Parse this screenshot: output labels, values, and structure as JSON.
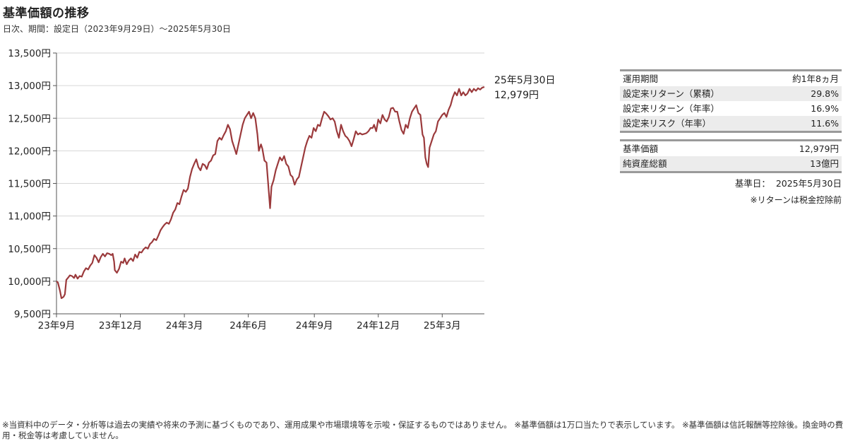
{
  "title": "基準価額の推移",
  "subtitle": "日次、期間：設定日（2023年9月29日）～2025年5月30日",
  "chart_data": {
    "type": "line",
    "title": "基準価額の推移",
    "ylim": [
      9500,
      13500
    ],
    "yticks": [
      "9,500円",
      "10,000円",
      "10,500円",
      "11,000円",
      "11,500円",
      "12,000円",
      "12,500円",
      "13,000円",
      "13,500円"
    ],
    "xticks": [
      {
        "label": "23年9月",
        "x": "2023-09-29"
      },
      {
        "label": "23年12月",
        "x": "2023-12-29"
      },
      {
        "label": "24年3月",
        "x": "2024-03-29"
      },
      {
        "label": "24年6月",
        "x": "2024-06-28"
      },
      {
        "label": "24年9月",
        "x": "2024-09-30"
      },
      {
        "label": "24年12月",
        "x": "2024-12-30"
      },
      {
        "label": "25年3月",
        "x": "2025-03-31"
      }
    ],
    "xrange": [
      "2023-09-29",
      "2025-05-30"
    ],
    "grid": true,
    "series": [
      {
        "color": "#9b3a3c",
        "points": [
          [
            "2023-09-29",
            10000
          ],
          [
            "2023-10-01",
            9980
          ],
          [
            "2023-10-04",
            9850
          ],
          [
            "2023-10-06",
            9740
          ],
          [
            "2023-10-09",
            9760
          ],
          [
            "2023-10-11",
            9800
          ],
          [
            "2023-10-13",
            10020
          ],
          [
            "2023-10-16",
            10060
          ],
          [
            "2023-10-18",
            10090
          ],
          [
            "2023-10-21",
            10080
          ],
          [
            "2023-10-24",
            10050
          ],
          [
            "2023-10-26",
            10100
          ],
          [
            "2023-10-29",
            10040
          ],
          [
            "2023-11-01",
            10080
          ],
          [
            "2023-11-04",
            10070
          ],
          [
            "2023-11-07",
            10150
          ],
          [
            "2023-11-10",
            10200
          ],
          [
            "2023-11-13",
            10180
          ],
          [
            "2023-11-16",
            10240
          ],
          [
            "2023-11-19",
            10280
          ],
          [
            "2023-11-22",
            10400
          ],
          [
            "2023-11-25",
            10360
          ],
          [
            "2023-11-28",
            10290
          ],
          [
            "2023-12-01",
            10370
          ],
          [
            "2023-12-04",
            10420
          ],
          [
            "2023-12-07",
            10380
          ],
          [
            "2023-12-10",
            10430
          ],
          [
            "2023-12-13",
            10420
          ],
          [
            "2023-12-16",
            10400
          ],
          [
            "2023-12-18",
            10420
          ],
          [
            "2023-12-20",
            10300
          ],
          [
            "2023-12-21",
            10170
          ],
          [
            "2023-12-24",
            10130
          ],
          [
            "2023-12-27",
            10190
          ],
          [
            "2023-12-30",
            10300
          ],
          [
            "2024-01-02",
            10280
          ],
          [
            "2024-01-04",
            10350
          ],
          [
            "2024-01-07",
            10260
          ],
          [
            "2024-01-10",
            10320
          ],
          [
            "2024-01-13",
            10350
          ],
          [
            "2024-01-16",
            10310
          ],
          [
            "2024-01-19",
            10410
          ],
          [
            "2024-01-22",
            10360
          ],
          [
            "2024-01-25",
            10450
          ],
          [
            "2024-01-28",
            10440
          ],
          [
            "2024-01-31",
            10490
          ],
          [
            "2024-02-03",
            10520
          ],
          [
            "2024-02-06",
            10500
          ],
          [
            "2024-02-09",
            10570
          ],
          [
            "2024-02-12",
            10600
          ],
          [
            "2024-02-15",
            10650
          ],
          [
            "2024-02-18",
            10630
          ],
          [
            "2024-02-21",
            10700
          ],
          [
            "2024-02-24",
            10780
          ],
          [
            "2024-02-27",
            10830
          ],
          [
            "2024-03-01",
            10870
          ],
          [
            "2024-03-04",
            10900
          ],
          [
            "2024-03-07",
            10880
          ],
          [
            "2024-03-10",
            10950
          ],
          [
            "2024-03-13",
            11050
          ],
          [
            "2024-03-16",
            11100
          ],
          [
            "2024-03-19",
            11200
          ],
          [
            "2024-03-22",
            11180
          ],
          [
            "2024-03-25",
            11300
          ],
          [
            "2024-03-28",
            11400
          ],
          [
            "2024-03-31",
            11370
          ],
          [
            "2024-04-03",
            11420
          ],
          [
            "2024-04-06",
            11600
          ],
          [
            "2024-04-09",
            11720
          ],
          [
            "2024-04-12",
            11800
          ],
          [
            "2024-04-15",
            11870
          ],
          [
            "2024-04-18",
            11750
          ],
          [
            "2024-04-21",
            11700
          ],
          [
            "2024-04-24",
            11800
          ],
          [
            "2024-04-27",
            11780
          ],
          [
            "2024-04-30",
            11720
          ],
          [
            "2024-05-03",
            11820
          ],
          [
            "2024-05-06",
            11850
          ],
          [
            "2024-05-09",
            11930
          ],
          [
            "2024-05-12",
            11950
          ],
          [
            "2024-05-15",
            12150
          ],
          [
            "2024-05-18",
            12200
          ],
          [
            "2024-05-21",
            12170
          ],
          [
            "2024-05-24",
            12240
          ],
          [
            "2024-05-27",
            12300
          ],
          [
            "2024-05-30",
            12400
          ],
          [
            "2024-06-02",
            12330
          ],
          [
            "2024-06-05",
            12150
          ],
          [
            "2024-06-08",
            12050
          ],
          [
            "2024-06-11",
            11950
          ],
          [
            "2024-06-14",
            12100
          ],
          [
            "2024-06-17",
            12250
          ],
          [
            "2024-06-20",
            12400
          ],
          [
            "2024-06-23",
            12500
          ],
          [
            "2024-06-26",
            12550
          ],
          [
            "2024-06-29",
            12600
          ],
          [
            "2024-07-02",
            12500
          ],
          [
            "2024-07-05",
            12580
          ],
          [
            "2024-07-08",
            12500
          ],
          [
            "2024-07-11",
            12250
          ],
          [
            "2024-07-13",
            12000
          ],
          [
            "2024-07-16",
            12100
          ],
          [
            "2024-07-18",
            12030
          ],
          [
            "2024-07-21",
            11850
          ],
          [
            "2024-07-24",
            11820
          ],
          [
            "2024-07-27",
            11400
          ],
          [
            "2024-07-29",
            11120
          ],
          [
            "2024-07-31",
            11450
          ],
          [
            "2024-08-03",
            11550
          ],
          [
            "2024-08-06",
            11700
          ],
          [
            "2024-08-09",
            11800
          ],
          [
            "2024-08-12",
            11900
          ],
          [
            "2024-08-15",
            11850
          ],
          [
            "2024-08-18",
            11920
          ],
          [
            "2024-08-21",
            11800
          ],
          [
            "2024-08-24",
            11760
          ],
          [
            "2024-08-27",
            11630
          ],
          [
            "2024-08-30",
            11600
          ],
          [
            "2024-09-02",
            11480
          ],
          [
            "2024-09-05",
            11560
          ],
          [
            "2024-09-08",
            11600
          ],
          [
            "2024-09-11",
            11750
          ],
          [
            "2024-09-14",
            11900
          ],
          [
            "2024-09-17",
            12050
          ],
          [
            "2024-09-20",
            12150
          ],
          [
            "2024-09-23",
            12230
          ],
          [
            "2024-09-26",
            12200
          ],
          [
            "2024-09-29",
            12350
          ],
          [
            "2024-10-02",
            12300
          ],
          [
            "2024-10-05",
            12400
          ],
          [
            "2024-10-08",
            12380
          ],
          [
            "2024-10-11",
            12500
          ],
          [
            "2024-10-14",
            12600
          ],
          [
            "2024-10-17",
            12570
          ],
          [
            "2024-10-20",
            12530
          ],
          [
            "2024-10-23",
            12480
          ],
          [
            "2024-10-26",
            12500
          ],
          [
            "2024-10-29",
            12450
          ],
          [
            "2024-11-01",
            12300
          ],
          [
            "2024-11-04",
            12200
          ],
          [
            "2024-11-07",
            12400
          ],
          [
            "2024-11-10",
            12300
          ],
          [
            "2024-11-13",
            12230
          ],
          [
            "2024-11-16",
            12200
          ],
          [
            "2024-11-19",
            12150
          ],
          [
            "2024-11-22",
            12070
          ],
          [
            "2024-11-25",
            12180
          ],
          [
            "2024-11-28",
            12300
          ],
          [
            "2024-12-01",
            12250
          ],
          [
            "2024-12-04",
            12270
          ],
          [
            "2024-12-07",
            12250
          ],
          [
            "2024-12-10",
            12260
          ],
          [
            "2024-12-13",
            12270
          ],
          [
            "2024-12-16",
            12300
          ],
          [
            "2024-12-19",
            12350
          ],
          [
            "2024-12-22",
            12350
          ],
          [
            "2024-12-24",
            12400
          ],
          [
            "2024-12-27",
            12300
          ],
          [
            "2024-12-30",
            12480
          ],
          [
            "2025-01-02",
            12420
          ],
          [
            "2025-01-05",
            12550
          ],
          [
            "2025-01-08",
            12480
          ],
          [
            "2025-01-11",
            12450
          ],
          [
            "2025-01-14",
            12520
          ],
          [
            "2025-01-17",
            12650
          ],
          [
            "2025-01-20",
            12660
          ],
          [
            "2025-01-23",
            12600
          ],
          [
            "2025-01-26",
            12600
          ],
          [
            "2025-01-29",
            12450
          ],
          [
            "2025-02-01",
            12320
          ],
          [
            "2025-02-04",
            12260
          ],
          [
            "2025-02-07",
            12400
          ],
          [
            "2025-02-10",
            12350
          ],
          [
            "2025-02-13",
            12500
          ],
          [
            "2025-02-16",
            12600
          ],
          [
            "2025-02-19",
            12650
          ],
          [
            "2025-02-22",
            12700
          ],
          [
            "2025-02-25",
            12580
          ],
          [
            "2025-02-28",
            12550
          ],
          [
            "2025-03-03",
            12250
          ],
          [
            "2025-03-05",
            12200
          ],
          [
            "2025-03-07",
            11900
          ],
          [
            "2025-03-09",
            11800
          ],
          [
            "2025-03-11",
            11750
          ],
          [
            "2025-03-13",
            12050
          ],
          [
            "2025-03-16",
            12150
          ],
          [
            "2025-03-19",
            12250
          ],
          [
            "2025-03-22",
            12300
          ],
          [
            "2025-03-25",
            12450
          ],
          [
            "2025-03-28",
            12500
          ],
          [
            "2025-03-31",
            12550
          ],
          [
            "2025-04-03",
            12580
          ],
          [
            "2025-04-06",
            12520
          ],
          [
            "2025-04-09",
            12630
          ],
          [
            "2025-04-12",
            12700
          ],
          [
            "2025-04-15",
            12820
          ],
          [
            "2025-04-18",
            12900
          ],
          [
            "2025-04-21",
            12850
          ],
          [
            "2025-04-24",
            12950
          ],
          [
            "2025-04-27",
            12850
          ],
          [
            "2025-04-30",
            12900
          ],
          [
            "2025-05-03",
            12850
          ],
          [
            "2025-05-06",
            12880
          ],
          [
            "2025-05-09",
            12950
          ],
          [
            "2025-05-12",
            12900
          ],
          [
            "2025-05-15",
            12950
          ],
          [
            "2025-05-18",
            12920
          ],
          [
            "2025-05-21",
            12960
          ],
          [
            "2025-05-24",
            12940
          ],
          [
            "2025-05-27",
            12970
          ],
          [
            "2025-05-30",
            12979
          ]
        ]
      }
    ],
    "last_label_date": "25年5月30日",
    "last_label_value": "12,979円"
  },
  "stats1": [
    {
      "label": "運用期間",
      "value": "約1年8ヵ月"
    },
    {
      "label": "設定来リターン（累積）",
      "value": "29.8%"
    },
    {
      "label": "設定来リターン（年率）",
      "value": "16.9%"
    },
    {
      "label": "設定来リスク（年率）",
      "value": "11.6%"
    }
  ],
  "stats2": [
    {
      "label": "基準価額",
      "value": "12,979円"
    },
    {
      "label": "純資産総額",
      "value": "13億円"
    }
  ],
  "asof_label": "基準日：",
  "asof_value": "2025年5月30日",
  "return_note": "※リターンは税金控除前",
  "footnote": "※当資料中のデータ・分析等は過去の実績や将来の予測に基づくものであり、運用成果や市場環境等を示唆・保証するものではありません。 ※基準価額は1万口当たりで表示しています。 ※基準価額は信託報酬等控除後。換金時の費用・税金等は考慮していません。"
}
